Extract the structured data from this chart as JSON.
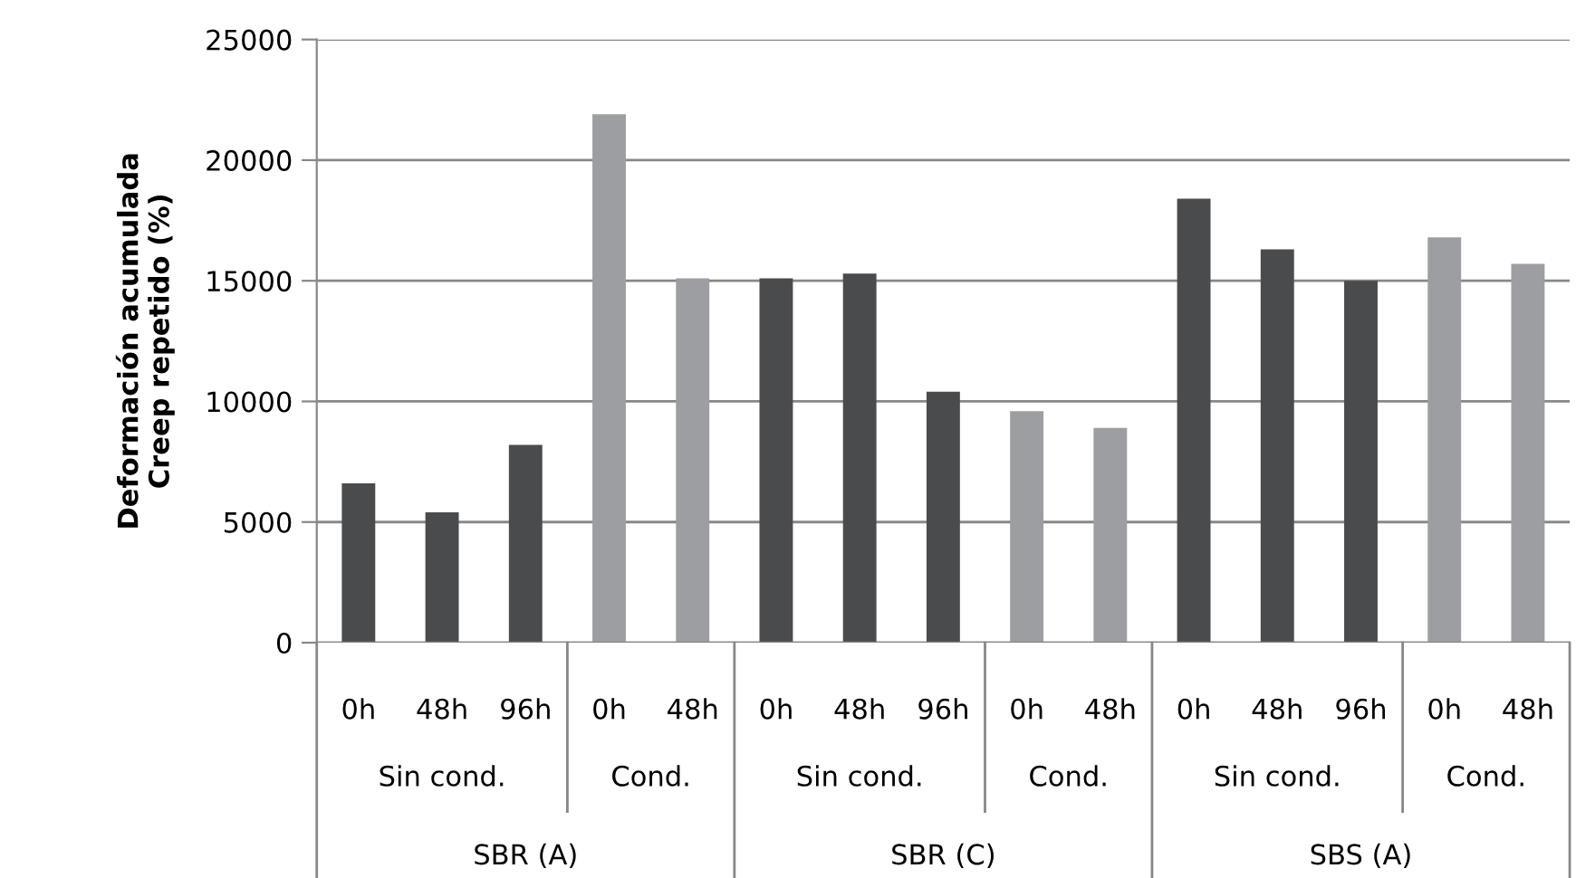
{
  "chart_data": {
    "type": "bar",
    "ylabel": "Deformación acumulada\nCreep repetido (%)",
    "categories": [
      "0h",
      "48h",
      "96h",
      "0h",
      "48h",
      "0h",
      "48h",
      "96h",
      "0h",
      "48h",
      "0h",
      "48h",
      "96h",
      "0h",
      "48h"
    ],
    "values": [
      6600,
      5400,
      8200,
      21900,
      15100,
      15100,
      15300,
      10400,
      9600,
      8900,
      18400,
      16300,
      15000,
      16800,
      15700
    ],
    "colors": [
      "#4a4b4d",
      "#4a4b4d",
      "#4a4b4d",
      "#9d9ea1",
      "#9d9ea1",
      "#4a4b4d",
      "#4a4b4d",
      "#4a4b4d",
      "#9d9ea1",
      "#9d9ea1",
      "#4a4b4d",
      "#4a4b4d",
      "#4a4b4d",
      "#9d9ea1",
      "#9d9ea1"
    ],
    "annotations": [
      "Sin cond.",
      "Cond.",
      "Sin cond.",
      "Cond.",
      "Sin cond.",
      "Cond.",
      "SBR (A)",
      "SBR (C)",
      "SBS (A)"
    ],
    "ylim": [
      0,
      25000
    ],
    "yticks": [
      0,
      5000,
      10000,
      15000,
      20000,
      25000
    ],
    "grid": "y"
  }
}
